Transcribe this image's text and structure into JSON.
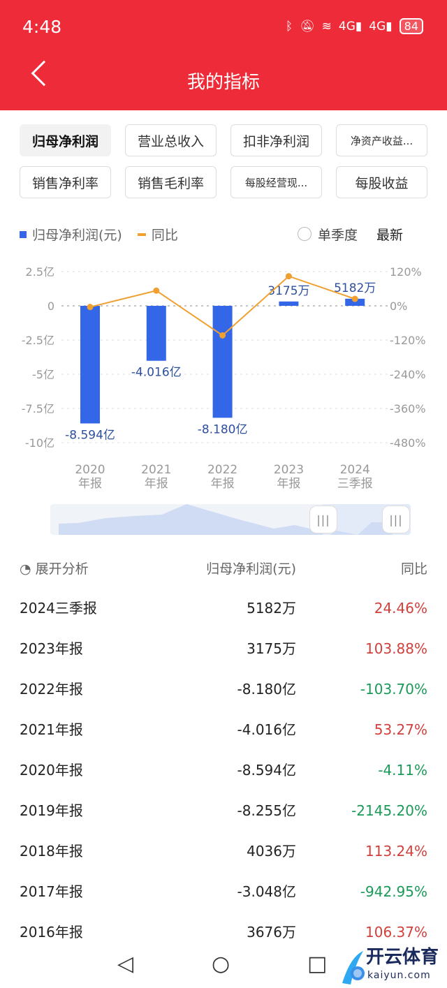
{
  "status_bar": {
    "time": "4:48",
    "icons": [
      "bluetooth-icon",
      "mute-icon",
      "wifi-icon",
      "signal-4g-icon",
      "signal-4g-icon"
    ],
    "battery": "84"
  },
  "header": {
    "title": "我的指标"
  },
  "metric_tabs": [
    {
      "label": "归母净利润",
      "selected": true
    },
    {
      "label": "营业总收入"
    },
    {
      "label": "扣非净利润"
    },
    {
      "label": "净资产收益..."
    },
    {
      "label": "销售净利率"
    },
    {
      "label": "销售毛利率"
    },
    {
      "label": "每股经营现..."
    },
    {
      "label": "每股收益"
    }
  ],
  "controls": {
    "single_quarter": "单季度",
    "latest": "最新"
  },
  "colors": {
    "bar": "#3367e8",
    "line": "#f0a030",
    "positive": "#d0403c",
    "negative": "#1a9a58",
    "brand": "#ee2b38"
  },
  "chart_data": {
    "type": "bar+line",
    "legend": [
      {
        "name": "归母净利润(元)",
        "type": "bar"
      },
      {
        "name": "同比",
        "type": "line"
      }
    ],
    "legend_position": "top-left",
    "categories": [
      [
        "2020",
        "年报"
      ],
      [
        "2021",
        "年报"
      ],
      [
        "2022",
        "年报"
      ],
      [
        "2023",
        "年报"
      ],
      [
        "2024",
        "三季报"
      ]
    ],
    "bar_values_yi": [
      -8.594,
      -4.016,
      -8.18,
      0.3175,
      0.5182
    ],
    "bar_labels": [
      "-8.594亿",
      "-4.016亿",
      "-8.180亿",
      "3175万",
      "5182万"
    ],
    "line_values_pct": [
      -4.11,
      53.27,
      -103.7,
      103.88,
      24.46
    ],
    "left_ticks": [
      "2.5亿",
      "0",
      "-2.5亿",
      "-5亿",
      "-7.5亿",
      "-10亿"
    ],
    "left_range": [
      -10,
      2.5
    ],
    "right_ticks": [
      "120%",
      "0%",
      "-120%",
      "-240%",
      "-360%",
      "-480%"
    ],
    "right_range": [
      -480,
      120
    ],
    "grid": true
  },
  "table": {
    "expand_label": "展开分析",
    "headers": [
      "归母净利润(元)",
      "同比"
    ],
    "rows": [
      {
        "period": "2024三季报",
        "value": "5182万",
        "yoy": "24.46%",
        "sign": "pos"
      },
      {
        "period": "2023年报",
        "value": "3175万",
        "yoy": "103.88%",
        "sign": "pos"
      },
      {
        "period": "2022年报",
        "value": "-8.180亿",
        "yoy": "-103.70%",
        "sign": "neg"
      },
      {
        "period": "2021年报",
        "value": "-4.016亿",
        "yoy": "53.27%",
        "sign": "pos"
      },
      {
        "period": "2020年报",
        "value": "-8.594亿",
        "yoy": "-4.11%",
        "sign": "neg"
      },
      {
        "period": "2019年报",
        "value": "-8.255亿",
        "yoy": "-2145.20%",
        "sign": "neg"
      },
      {
        "period": "2018年报",
        "value": "4036万",
        "yoy": "113.24%",
        "sign": "pos"
      },
      {
        "period": "2017年报",
        "value": "-3.048亿",
        "yoy": "-942.95%",
        "sign": "neg"
      },
      {
        "period": "2016年报",
        "value": "3676万",
        "yoy": "106.37%",
        "sign": "pos"
      }
    ]
  },
  "watermark": {
    "text": "开云体育",
    "url_text": "kaiyun.com"
  }
}
